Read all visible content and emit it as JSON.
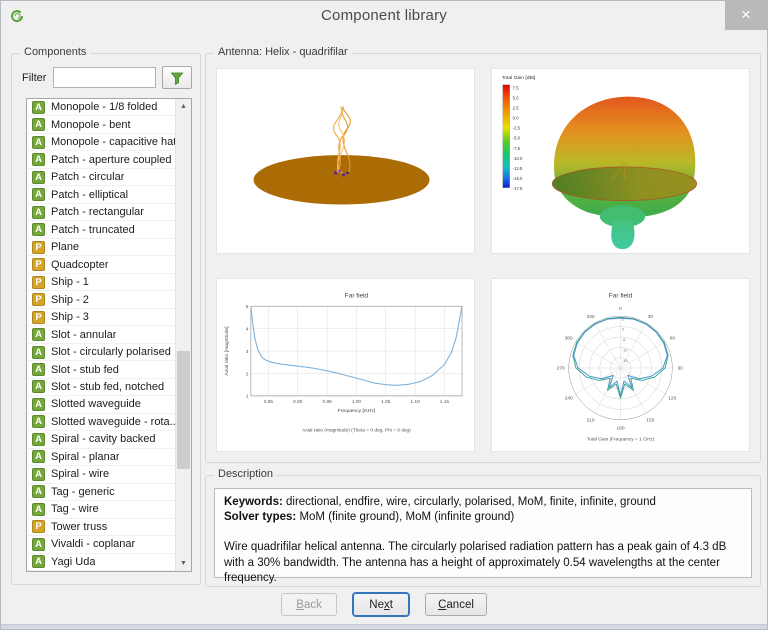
{
  "window": {
    "title": "Component library",
    "close_glyph": "×"
  },
  "components_panel": {
    "title": "Components",
    "filter_label": "Filter",
    "filter_value": "",
    "item_types": {
      "a": {
        "letter": "A",
        "color": "#74a83a",
        "meaning": "antenna"
      },
      "p": {
        "letter": "P",
        "color": "#d6a428",
        "meaning": "platform"
      }
    },
    "items": [
      {
        "type": "a",
        "label": "Monopole - 1/8 folded"
      },
      {
        "type": "a",
        "label": "Monopole - bent"
      },
      {
        "type": "a",
        "label": "Monopole - capacitive hat"
      },
      {
        "type": "a",
        "label": "Patch - aperture coupled"
      },
      {
        "type": "a",
        "label": "Patch - circular"
      },
      {
        "type": "a",
        "label": "Patch - elliptical"
      },
      {
        "type": "a",
        "label": "Patch - rectangular"
      },
      {
        "type": "a",
        "label": "Patch - truncated"
      },
      {
        "type": "p",
        "label": "Plane"
      },
      {
        "type": "p",
        "label": "Quadcopter"
      },
      {
        "type": "p",
        "label": "Ship - 1"
      },
      {
        "type": "p",
        "label": "Ship - 2"
      },
      {
        "type": "p",
        "label": "Ship - 3"
      },
      {
        "type": "a",
        "label": "Slot - annular"
      },
      {
        "type": "a",
        "label": "Slot - circularly polarised"
      },
      {
        "type": "a",
        "label": "Slot - stub fed"
      },
      {
        "type": "a",
        "label": "Slot - stub fed, notched"
      },
      {
        "type": "a",
        "label": "Slotted waveguide"
      },
      {
        "type": "a",
        "label": "Slotted waveguide - rota..."
      },
      {
        "type": "a",
        "label": "Spiral - cavity backed"
      },
      {
        "type": "a",
        "label": "Spiral - planar"
      },
      {
        "type": "a",
        "label": "Spiral - wire"
      },
      {
        "type": "a",
        "label": "Tag - generic"
      },
      {
        "type": "a",
        "label": "Tag - wire"
      },
      {
        "type": "p",
        "label": "Tower truss"
      },
      {
        "type": "a",
        "label": "Vivaldi - coplanar"
      },
      {
        "type": "a",
        "label": "Yagi Uda"
      }
    ]
  },
  "preview_panel": {
    "title": "Antenna: Helix - quadrifilar"
  },
  "description_panel": {
    "title": "Description",
    "keywords_label": "Keywords:",
    "keywords": "directional, endfire, wire, circularly, polarised, MoM, finite, infinite, ground",
    "solver_label": "Solver types:",
    "solvers": "MoM (finite ground), MoM (infinite ground)",
    "body": "Wire quadrifilar helical antenna. The circularly polarised radiation pattern has a peak gain of 4.3 dB with a 30% bandwidth. The antenna has a height of approximately 0.54 wavelengths at the center frequency."
  },
  "buttons": [
    {
      "id": "back",
      "label": "Back",
      "mnemonic": 0,
      "enabled": false,
      "focused": false
    },
    {
      "id": "next",
      "label": "Next",
      "mnemonic": 2,
      "enabled": true,
      "focused": true
    },
    {
      "id": "cancel",
      "label": "Cancel",
      "mnemonic": 0,
      "enabled": true,
      "focused": false
    }
  ],
  "chart_data": [
    {
      "type": "line",
      "title": "Far field",
      "xlabel": "Frequency [GHz]",
      "ylabel": "Axial ratio [magnitude]",
      "caption": "Axial ratio (magnitude) (Theta = 0 deg, Phi = 0 deg)",
      "xlim": [
        0.82,
        1.18
      ],
      "ylim": [
        1,
        5
      ],
      "xticks": [
        "0.85",
        "0.90",
        "0.95",
        "1.00",
        "1.05",
        "1.10",
        "1.15"
      ],
      "yticks": [
        1,
        2,
        3,
        4,
        5
      ],
      "grid": true,
      "line_color": "#7fb2d9",
      "points": [
        [
          0.82,
          5.0
        ],
        [
          0.823,
          4.25
        ],
        [
          0.827,
          3.55
        ],
        [
          0.832,
          3.05
        ],
        [
          0.838,
          2.75
        ],
        [
          0.845,
          2.6
        ],
        [
          0.855,
          2.5
        ],
        [
          0.87,
          2.42
        ],
        [
          0.89,
          2.36
        ],
        [
          0.91,
          2.3
        ],
        [
          0.93,
          2.22
        ],
        [
          0.95,
          2.12
        ],
        [
          0.97,
          2.0
        ],
        [
          0.99,
          1.86
        ],
        [
          1.01,
          1.72
        ],
        [
          1.03,
          1.58
        ],
        [
          1.05,
          1.5
        ],
        [
          1.07,
          1.47
        ],
        [
          1.09,
          1.52
        ],
        [
          1.11,
          1.65
        ],
        [
          1.13,
          1.92
        ],
        [
          1.15,
          2.4
        ],
        [
          1.162,
          2.95
        ],
        [
          1.17,
          3.6
        ],
        [
          1.18,
          5.0
        ]
      ]
    },
    {
      "type": "polar",
      "title": "Far field",
      "caption": "Total Gain (Frequency = 1 GHz)",
      "angle_ticks_deg": [
        0,
        30,
        60,
        90,
        120,
        150,
        180,
        210,
        240,
        270,
        300,
        330
      ],
      "r_ticks": [
        5,
        0,
        -5,
        -10,
        -15
      ],
      "rlim": [
        -20,
        5
      ],
      "theta_step_deg": 15,
      "series": [
        {
          "name": "trace-1",
          "color": "#35a792",
          "values": [
            4.4,
            4.6,
            4.7,
            4.6,
            4.4,
            3.8,
            1.5,
            -3.0,
            -8.0,
            -13.0,
            -7.5,
            -12.0,
            -5.5,
            -12.0,
            -7.5,
            -13.0,
            -8.0,
            -3.0,
            1.5,
            3.8,
            4.4,
            4.6,
            4.7,
            4.6
          ]
        },
        {
          "name": "trace-2",
          "color": "#4b93c9",
          "values": [
            4.1,
            4.4,
            4.5,
            4.4,
            4.1,
            3.4,
            0.5,
            -4.5,
            -9.5,
            -15.0,
            -9.0,
            -13.5,
            -6.5,
            -13.5,
            -9.0,
            -15.0,
            -9.5,
            -4.5,
            0.5,
            3.4,
            4.1,
            4.4,
            4.5,
            4.4
          ]
        }
      ]
    },
    {
      "type": "colorbar",
      "title": "Total Gain [dBi]",
      "ticks": [
        "7.5",
        "5.0",
        "2.5",
        "0.0",
        "-2.5",
        "-5.0",
        "-7.5",
        "-10.0",
        "-12.5",
        "-15.0",
        "-17.5"
      ]
    }
  ]
}
